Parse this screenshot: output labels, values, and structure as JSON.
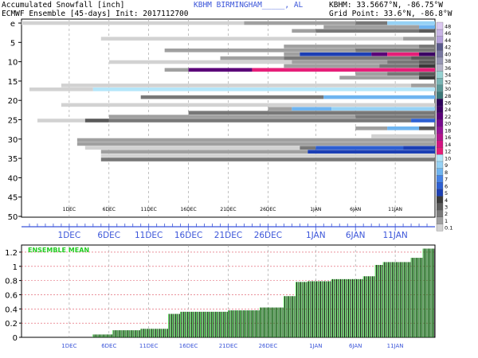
{
  "header": {
    "title_left_1": "Accumulated Snowfall [inch]",
    "title_left_2": "ECMWF Ensemble [45-days] Init: 2017112700",
    "station": "KBHM BIRMINGHAM_____, AL",
    "coords_1": "KBHM: 33.5667°N, -86.75°W",
    "coords_2": "Grid Point: 33.6°N, -86.8°W"
  },
  "top_chart": {
    "type": "heatmap",
    "y_ticks": [
      "e",
      "5",
      "10",
      "15",
      "20",
      "25",
      "30",
      "35",
      "40",
      "45",
      "50"
    ],
    "y_range": [
      0,
      50
    ],
    "inner_x_labels": [
      "1DEC",
      "6DEC",
      "11DEC",
      "16DEC",
      "21DEC",
      "26DEC",
      "1JAN",
      "6JAN",
      "11JAN"
    ],
    "outer_x_labels": [
      "1DEC",
      "6DEC",
      "11DEC",
      "16DEC",
      "21DEC",
      "26DEC",
      "1JAN",
      "6JAN",
      "11JAN"
    ],
    "x_range_days": [
      -6,
      46
    ],
    "colorbar": {
      "labels": [
        "0.1",
        "1",
        "2",
        "3",
        "4",
        "5",
        "6",
        "7",
        "8",
        "9",
        "10",
        "12",
        "14",
        "16",
        "18",
        "20",
        "22",
        "24",
        "26",
        "28",
        "30",
        "32",
        "34",
        "36",
        "38",
        "40",
        "42",
        "44",
        "46",
        "48"
      ],
      "colors": [
        "#d2d2d2",
        "#a0a0a0",
        "#787878",
        "#5a5a5a",
        "#3a3a3a",
        "#1c3fb4",
        "#2d5fd2",
        "#4682e6",
        "#6eb4f0",
        "#96d2f5",
        "#b4e6fa",
        "#e61e78",
        "#d21482",
        "#b4148c",
        "#961496",
        "#780a8c",
        "#5a0078",
        "#3c0064",
        "#2d005a",
        "#3c7878",
        "#5a9696",
        "#78b4b4",
        "#96d2d2",
        "#b4b4c8",
        "#9696b4",
        "#7878a0",
        "#5a5a8c",
        "#b4a0dc",
        "#c8b4e6",
        "#dcc8f0"
      ]
    },
    "members": [
      {
        "m": 0,
        "segments": [
          [
            -6,
            22,
            0
          ],
          [
            22,
            36,
            1
          ],
          [
            36,
            40,
            2
          ],
          [
            40,
            46,
            9
          ]
        ]
      },
      {
        "m": 1,
        "segments": [
          [
            32,
            44,
            1
          ],
          [
            44,
            46,
            8
          ]
        ]
      },
      {
        "m": 2,
        "segments": [
          [
            28,
            31,
            1
          ],
          [
            31,
            44,
            2
          ],
          [
            44,
            46,
            3
          ]
        ]
      },
      {
        "m": 4,
        "segments": [
          [
            4,
            42,
            0
          ],
          [
            42,
            46,
            1
          ]
        ]
      },
      {
        "m": 6,
        "segments": [
          [
            27,
            44,
            1
          ],
          [
            44,
            46,
            2
          ]
        ]
      },
      {
        "m": 7,
        "segments": [
          [
            12,
            36,
            1
          ],
          [
            36,
            46,
            2
          ]
        ]
      },
      {
        "m": 8,
        "segments": [
          [
            27,
            29,
            1
          ],
          [
            29,
            38,
            5
          ],
          [
            38,
            40,
            16
          ],
          [
            40,
            44,
            11
          ],
          [
            44,
            46,
            17
          ]
        ]
      },
      {
        "m": 9,
        "segments": [
          [
            19,
            27,
            1
          ],
          [
            27,
            43,
            2
          ],
          [
            43,
            46,
            3
          ]
        ]
      },
      {
        "m": 10,
        "segments": [
          [
            5,
            28,
            0
          ],
          [
            28,
            40,
            1
          ],
          [
            40,
            44,
            2
          ],
          [
            44,
            46,
            3
          ]
        ]
      },
      {
        "m": 11,
        "segments": [
          [
            27,
            39,
            1
          ],
          [
            39,
            44,
            2
          ],
          [
            44,
            46,
            4
          ]
        ]
      },
      {
        "m": 12,
        "segments": [
          [
            12,
            15,
            1
          ],
          [
            15,
            23,
            16
          ],
          [
            23,
            46,
            11
          ]
        ]
      },
      {
        "m": 13,
        "segments": [
          [
            36,
            40,
            1
          ],
          [
            40,
            44,
            2
          ],
          [
            44,
            46,
            3
          ]
        ]
      },
      {
        "m": 14,
        "segments": [
          [
            34,
            44,
            1
          ],
          [
            44,
            46,
            4
          ]
        ]
      },
      {
        "m": 16,
        "segments": [
          [
            -1,
            43,
            0
          ],
          [
            43,
            46,
            1
          ]
        ]
      },
      {
        "m": 17,
        "segments": [
          [
            -5,
            3,
            0
          ],
          [
            3,
            46,
            10
          ]
        ]
      },
      {
        "m": 19,
        "segments": [
          [
            9,
            32,
            2
          ],
          [
            32,
            46,
            8
          ]
        ]
      },
      {
        "m": 21,
        "segments": [
          [
            -1,
            46,
            0
          ]
        ]
      },
      {
        "m": 22,
        "segments": [
          [
            25,
            28,
            1
          ],
          [
            28,
            33,
            8
          ],
          [
            33,
            46,
            9
          ]
        ]
      },
      {
        "m": 23,
        "segments": [
          [
            15,
            46,
            2
          ]
        ]
      },
      {
        "m": 24,
        "segments": [
          [
            5,
            36,
            1
          ],
          [
            36,
            46,
            2
          ]
        ]
      },
      {
        "m": 25,
        "segments": [
          [
            -4,
            2,
            0
          ],
          [
            2,
            5,
            3
          ],
          [
            5,
            43,
            2
          ],
          [
            43,
            46,
            6
          ]
        ]
      },
      {
        "m": 27,
        "segments": [
          [
            36,
            40,
            1
          ],
          [
            40,
            44,
            8
          ],
          [
            44,
            46,
            3
          ]
        ]
      },
      {
        "m": 29,
        "segments": [
          [
            38,
            46,
            0
          ]
        ]
      },
      {
        "m": 30,
        "segments": [
          [
            1,
            46,
            1
          ]
        ]
      },
      {
        "m": 31,
        "segments": [
          [
            1,
            46,
            1
          ]
        ]
      },
      {
        "m": 32,
        "segments": [
          [
            2,
            29,
            0
          ],
          [
            29,
            31,
            2
          ],
          [
            31,
            42,
            6
          ],
          [
            42,
            46,
            5
          ]
        ]
      },
      {
        "m": 33,
        "segments": [
          [
            4,
            30,
            1
          ],
          [
            30,
            46,
            5
          ]
        ]
      },
      {
        "m": 34,
        "segments": [
          [
            4,
            46,
            0
          ]
        ]
      },
      {
        "m": 35,
        "segments": [
          [
            4,
            46,
            2
          ]
        ]
      }
    ]
  },
  "bottom_chart": {
    "type": "bar",
    "legend": "ENSEMBLE MEAN",
    "x_labels": [
      "1DEC",
      "6DEC",
      "11DEC",
      "16DEC",
      "21DEC",
      "26DEC",
      "1JAN",
      "6JAN",
      "11JAN"
    ],
    "y_ticks": [
      "0",
      "0.2",
      "0.4",
      "0.6",
      "0.8",
      "1",
      "1.2"
    ],
    "ylim": [
      0,
      1.3
    ],
    "x_range_days": [
      -6,
      46
    ],
    "steps": [
      {
        "from": 3.0,
        "to": 5.5,
        "y": 0.04
      },
      {
        "from": 5.5,
        "to": 9.0,
        "y": 0.1
      },
      {
        "from": 9.0,
        "to": 12.5,
        "y": 0.12
      },
      {
        "from": 12.5,
        "to": 14.0,
        "y": 0.33
      },
      {
        "from": 14.0,
        "to": 20.0,
        "y": 0.36
      },
      {
        "from": 20.0,
        "to": 24.0,
        "y": 0.38
      },
      {
        "from": 24.0,
        "to": 27.0,
        "y": 0.42
      },
      {
        "from": 27.0,
        "to": 28.5,
        "y": 0.58
      },
      {
        "from": 28.5,
        "to": 30.0,
        "y": 0.78
      },
      {
        "from": 30.0,
        "to": 33.0,
        "y": 0.79
      },
      {
        "from": 33.0,
        "to": 37.0,
        "y": 0.82
      },
      {
        "from": 37.0,
        "to": 38.5,
        "y": 0.86
      },
      {
        "from": 38.5,
        "to": 39.5,
        "y": 1.02
      },
      {
        "from": 39.5,
        "to": 43.0,
        "y": 1.06
      },
      {
        "from": 43.0,
        "to": 44.5,
        "y": 1.12
      },
      {
        "from": 44.5,
        "to": 46.0,
        "y": 1.25
      }
    ]
  },
  "colors": {
    "bar_green": "#3cdc3c",
    "bar_dark": "#000000",
    "grid_red": "#e05060",
    "axis_blue": "#3b55d9",
    "legend_green": "#22cc22"
  }
}
